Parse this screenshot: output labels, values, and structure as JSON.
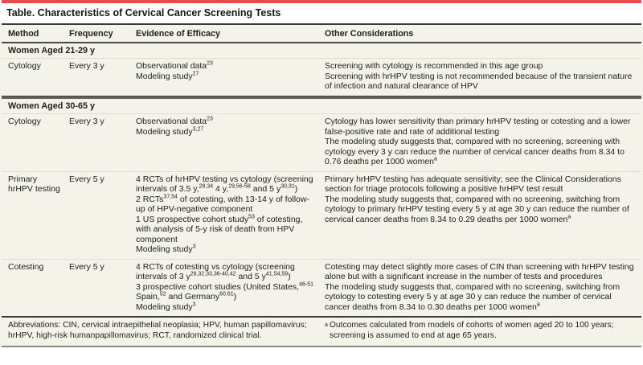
{
  "colors": {
    "accent_red": "#e74c4f",
    "table_background": "#f4f3ea",
    "dark_rule": "#3c3c37",
    "section_rule": "#62625a",
    "light_rule": "#deddd0",
    "text": "#21211d"
  },
  "title": "Table. Characteristics of Cervical Cancer Screening Tests",
  "columns": {
    "method": "Method",
    "frequency": "Frequency",
    "evidence": "Evidence of Efficacy",
    "considerations": "Other Considerations"
  },
  "sections": [
    {
      "header": "Women Aged 21-29 y",
      "rows": [
        {
          "method": "Cytology",
          "frequency": "Every 3 y",
          "evidence": [
            "Observational data^{23}",
            "Modeling study^{27}"
          ],
          "considerations": [
            "Screening with cytology is recommended in this age group",
            "Screening with hrHPV testing is not recommended because of the transient nature of infection and natural clearance of HPV"
          ]
        }
      ]
    },
    {
      "header": "Women Aged 30-65 y",
      "rows": [
        {
          "method": "Cytology",
          "frequency": "Every 3 y",
          "evidence": [
            "Observational data^{23}",
            "Modeling study^{3,27}"
          ],
          "considerations": [
            "Cytology has lower sensitivity than primary hrHPV testing or cotesting and a lower false-positive rate and rate of additional testing",
            "The modeling study suggests that, compared with no screening, screening with cytology every 3 y can reduce the number of cervical cancer deaths from 8.34 to 0.76 deaths per 1000 women^{a}"
          ]
        },
        {
          "method": "Primary hrHPV testing",
          "frequency": "Every 5 y",
          "evidence": [
            "4 RCTs of hrHPV testing vs cytology (screening intervals of 3.5 y,^{28,34} 4 y,^{29,56-58} and 5 y^{30,31})",
            "2 RCTs^{37,54} of cotesting, with 13-14 y of follow-up of HPV-negative component",
            "1 US prospective cohort study^{53} of cotesting, with analysis of 5-y risk of death from HPV component",
            "Modeling study^{3}"
          ],
          "considerations": [
            "Primary hrHPV testing has adequate sensitivity; see the Clinical Considerations section for triage protocols following a positive hrHPV test result",
            "The modeling study suggests that, compared with no screening, switching from cytology to primary hrHPV testing every 5 y at age 30 y can reduce the number of cervical cancer deaths from 8.34 to 0.29 deaths per 1000 women^{a}"
          ]
        },
        {
          "method": "Cotesting",
          "frequency": "Every 5 y",
          "evidence": [
            "4 RCTs of cotesting vs cytology (screening intervals of 3 y^{28,32,33,36-40,42} and 5 y^{41,54,59})",
            "3 prospective cohort studies (United States,^{46-51} Spain,^{52} and Germany^{60,61})",
            "Modeling study^{3}"
          ],
          "considerations": [
            "Cotesting may detect slightly more cases of CIN than screening with hrHPV testing alone but with a significant increase in the number of tests and procedures",
            "The modeling study suggests that, compared with no screening, switching from cytology to cotesting every 5 y at age 30 y can reduce the number of cervical cancer deaths from 8.34 to 0.30 deaths per 1000 women^{a}"
          ]
        }
      ]
    }
  ],
  "footnotes": {
    "abbreviations": "Abbreviations: CIN, cervical intraepithelial neoplasia; HPV, human papillomavirus; hrHPV, high-risk humanpapillomavirus; RCT, randomized clinical trial.",
    "a_marker": "a",
    "a_text": "Outcomes calculated from models of cohorts of women aged 20 to 100 years; screening is assumed to end at age 65 years."
  }
}
